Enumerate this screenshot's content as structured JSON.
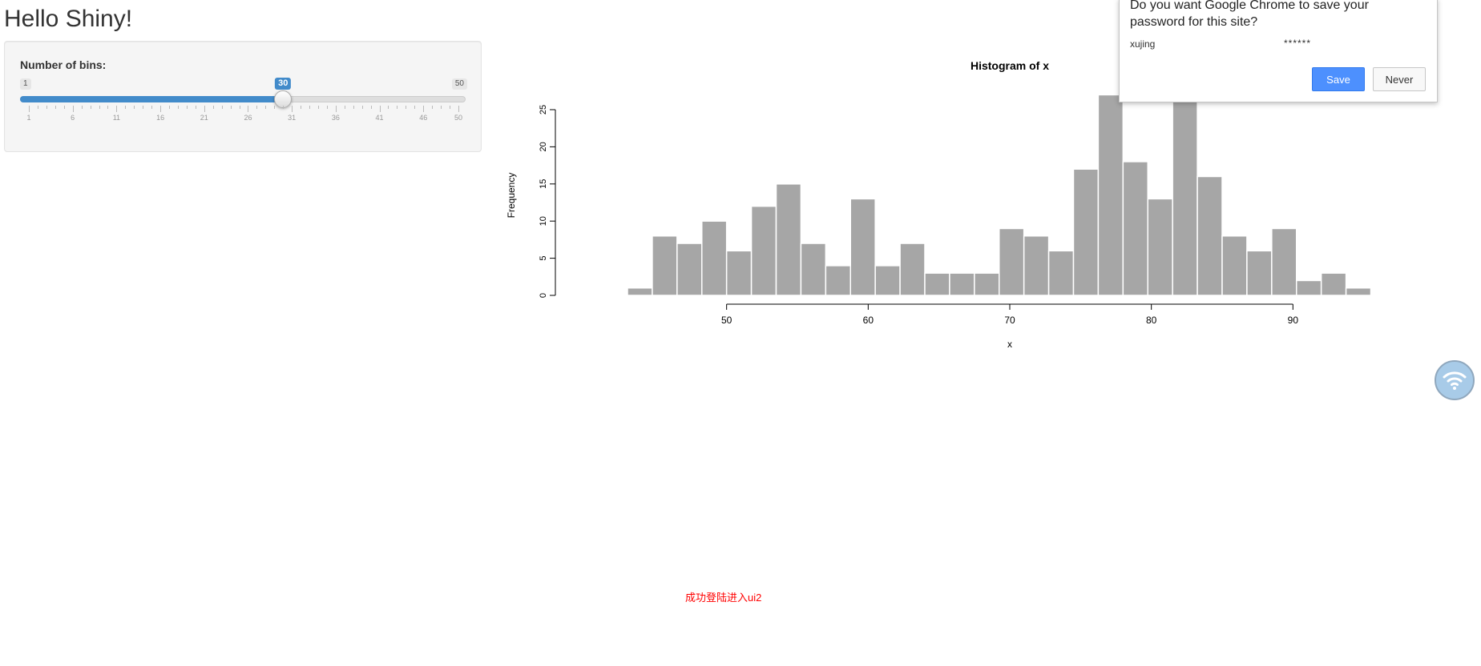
{
  "app": {
    "title": "Hello Shiny!"
  },
  "slider": {
    "label": "Number of bins:",
    "min": 1,
    "max": 50,
    "value": 30,
    "min_label": "1",
    "max_label": "50",
    "value_label": "30",
    "tick_labels": [
      "1",
      "6",
      "11",
      "16",
      "21",
      "26",
      "31",
      "36",
      "41",
      "46",
      "50"
    ],
    "accent_color": "#428bca"
  },
  "chart_data": {
    "type": "bar",
    "title": "Histogram of x",
    "xlabel": "x",
    "ylabel": "Frequency",
    "bin_start": 43,
    "bin_width": 1.75,
    "values": [
      1,
      8,
      7,
      10,
      6,
      12,
      15,
      7,
      4,
      13,
      4,
      7,
      3,
      3,
      3,
      9,
      8,
      6,
      17,
      27,
      18,
      13,
      27,
      16,
      8,
      6,
      9,
      2,
      3,
      1
    ],
    "xlim": [
      40,
      100
    ],
    "ylim": [
      0,
      25
    ],
    "x_ticks": [
      50,
      60,
      70,
      80,
      90
    ],
    "y_ticks": [
      0,
      5,
      10,
      15,
      20,
      25
    ],
    "bar_color": "#a6a6a6",
    "grid": false
  },
  "status": {
    "message": "成功登陆进入ui2",
    "color": "#ff0000"
  },
  "password_dialog": {
    "question": "Do you want Google Chrome to save your password for this site?",
    "username": "xujing",
    "password_mask": "******",
    "save_label": "Save",
    "never_label": "Never"
  },
  "floating_widget": {
    "icon": "wifi-icon"
  }
}
